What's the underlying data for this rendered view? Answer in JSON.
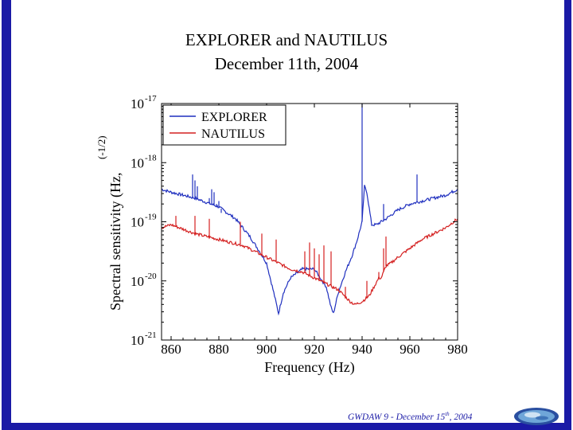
{
  "slide": {
    "title_line1": "EXPLORER and NAUTILUS",
    "title_line2": "December 11th, 2004",
    "footer_prefix": "GWDAW 9 - December 15",
    "footer_sup": "th",
    "footer_suffix": ", 2004",
    "logo_icon": "conference-logo-icon"
  },
  "colors": {
    "frame": "#1a1aa6",
    "explorer": "#1f2fbf",
    "nautilus": "#d42020"
  },
  "chart_data": {
    "type": "line",
    "title": "",
    "xlabel": "Frequency (Hz)",
    "ylabel": "Spectral sensitivity (Hz,",
    "ylabel_exponent": "(-1/2)",
    "xlim": [
      856,
      980
    ],
    "ylim_log10": [
      -21,
      -17
    ],
    "y_scale": "log",
    "x_tick_labels": [
      "860",
      "880",
      "900",
      "920",
      "940",
      "960",
      "980"
    ],
    "x_ticks": [
      860,
      880,
      900,
      920,
      940,
      960,
      980
    ],
    "y_ticks_log10": [
      -17,
      -18,
      -19,
      -20,
      -21
    ],
    "y_tick_base": "10",
    "y_tick_exponents": [
      "-17",
      "-18",
      "-19",
      "-20",
      "-21"
    ],
    "legend": {
      "placement": "top-left",
      "entries": [
        "EXPLORER",
        "NAUTILUS"
      ]
    },
    "series": [
      {
        "name": "EXPLORER",
        "x": [
          856,
          860,
          870,
          880,
          887,
          893,
          897,
          900,
          903,
          905,
          907,
          910,
          915,
          920,
          925,
          927,
          928,
          930,
          933,
          936,
          938,
          940,
          941,
          942,
          944,
          946,
          950,
          955,
          960,
          965,
          970,
          975,
          980
        ],
        "log10_y": [
          -18.45,
          -18.5,
          -18.6,
          -18.75,
          -18.95,
          -19.25,
          -19.5,
          -19.7,
          -20.2,
          -20.55,
          -20.2,
          -19.95,
          -19.8,
          -19.8,
          -20.1,
          -20.45,
          -20.55,
          -20.2,
          -19.85,
          -19.55,
          -19.3,
          -19.0,
          -18.4,
          -18.5,
          -19.05,
          -19.05,
          -18.95,
          -18.8,
          -18.7,
          -18.65,
          -18.6,
          -18.55,
          -18.45
        ],
        "spikes": [
          {
            "x": 869,
            "log10_y": -18.2
          },
          {
            "x": 870,
            "log10_y": -18.3
          },
          {
            "x": 871,
            "log10_y": -18.4
          },
          {
            "x": 876,
            "log10_y": -18.6
          },
          {
            "x": 877,
            "log10_y": -18.45
          },
          {
            "x": 878,
            "log10_y": -18.5
          },
          {
            "x": 879,
            "log10_y": -18.7
          },
          {
            "x": 880,
            "log10_y": -18.65
          },
          {
            "x": 881,
            "log10_y": -18.85
          },
          {
            "x": 940,
            "log10_y": -17.0
          },
          {
            "x": 949,
            "log10_y": -18.7
          },
          {
            "x": 963,
            "log10_y": -18.2
          }
        ]
      },
      {
        "name": "NAUTILUS",
        "x": [
          856,
          860,
          870,
          880,
          890,
          900,
          905,
          910,
          915,
          920,
          925,
          930,
          935,
          937,
          940,
          943,
          945,
          947,
          948,
          950,
          952,
          955,
          960,
          965,
          970,
          975,
          980
        ],
        "log10_y": [
          -19.1,
          -19.05,
          -19.2,
          -19.3,
          -19.4,
          -19.6,
          -19.7,
          -19.8,
          -19.85,
          -19.95,
          -20.05,
          -20.15,
          -20.35,
          -20.4,
          -20.35,
          -20.25,
          -20.1,
          -19.95,
          -19.95,
          -19.75,
          -19.7,
          -19.6,
          -19.45,
          -19.3,
          -19.2,
          -19.1,
          -18.95
        ],
        "spikes": [
          {
            "x": 862,
            "log10_y": -18.9
          },
          {
            "x": 870,
            "log10_y": -18.9
          },
          {
            "x": 876,
            "log10_y": -18.95
          },
          {
            "x": 889,
            "log10_y": -19.0
          },
          {
            "x": 898,
            "log10_y": -19.2
          },
          {
            "x": 904,
            "log10_y": -19.3
          },
          {
            "x": 916,
            "log10_y": -19.5
          },
          {
            "x": 918,
            "log10_y": -19.35
          },
          {
            "x": 920,
            "log10_y": -19.45
          },
          {
            "x": 922,
            "log10_y": -19.55
          },
          {
            "x": 924,
            "log10_y": -19.4
          },
          {
            "x": 927,
            "log10_y": -19.5
          },
          {
            "x": 933,
            "log10_y": -20.1
          },
          {
            "x": 942,
            "log10_y": -20.0
          },
          {
            "x": 947,
            "log10_y": -19.85
          },
          {
            "x": 949,
            "log10_y": -19.45
          },
          {
            "x": 950,
            "log10_y": -19.25
          }
        ]
      }
    ]
  }
}
